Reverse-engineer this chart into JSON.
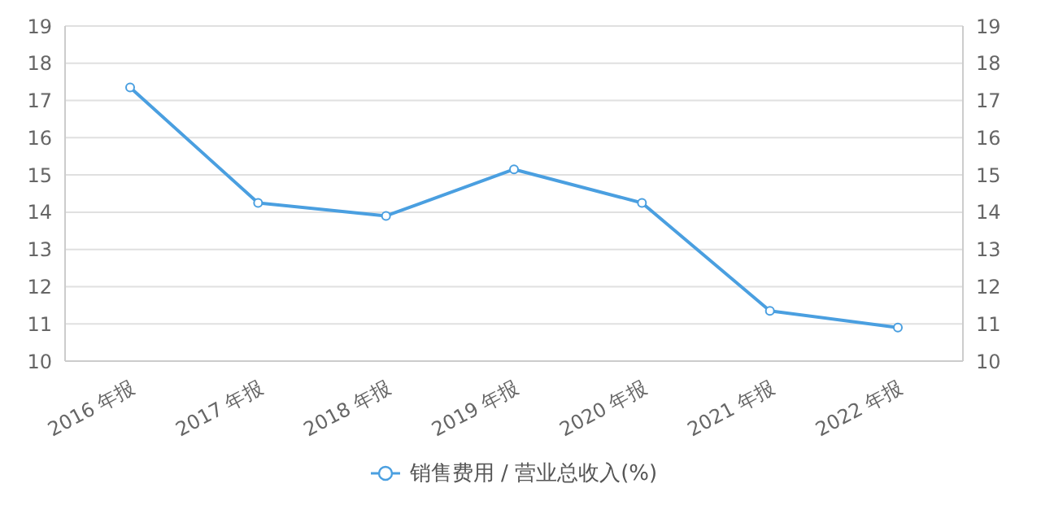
{
  "chart_data": {
    "type": "line",
    "categories": [
      "2016 年报",
      "2017 年报",
      "2018 年报",
      "2019 年报",
      "2020 年报",
      "2021 年报",
      "2022 年报"
    ],
    "series": [
      {
        "name": "销售费用 / 营业总收入(%)",
        "color": "#4a9fe0",
        "values": [
          17.35,
          14.25,
          13.9,
          15.15,
          14.25,
          11.35,
          10.9
        ]
      }
    ],
    "ylim": [
      10,
      19
    ],
    "yticks": [
      10,
      11,
      12,
      13,
      14,
      15,
      16,
      17,
      18,
      19
    ],
    "y2lim": [
      10,
      19
    ],
    "y2ticks": [
      10,
      11,
      12,
      13,
      14,
      15,
      16,
      17,
      18,
      19
    ],
    "grid": "y",
    "legend": "bottom",
    "marker": "circle",
    "line_style": "solid"
  }
}
